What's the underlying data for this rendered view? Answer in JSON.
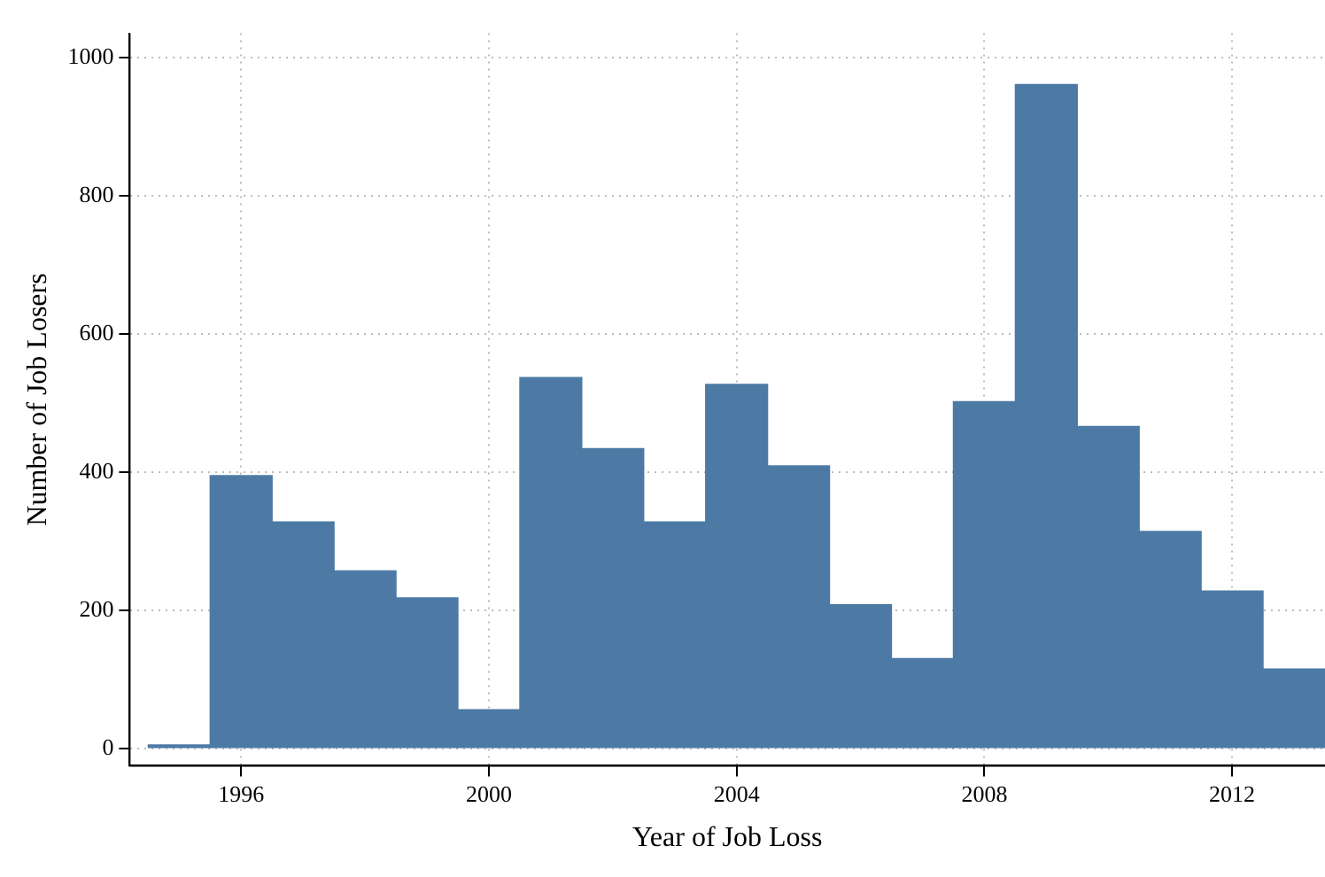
{
  "chart_data": {
    "type": "histogram",
    "xlabel": "Year of Job Loss",
    "ylabel": "Number of Job Losers",
    "bins": [
      1994.5,
      1995.5,
      1996.5,
      1997.5,
      1998.5,
      1999.5,
      2000.5,
      2001.5,
      2002.5,
      2003.5,
      2004.5,
      2005.5,
      2006.5,
      2007.5,
      2008.5,
      2009.5,
      2010.5,
      2011.5,
      2012.5,
      2013.5
    ],
    "values": [
      5,
      395,
      328,
      257,
      218,
      56,
      537,
      434,
      328,
      527,
      409,
      208,
      130,
      502,
      961,
      466,
      314,
      228,
      115
    ],
    "color": "#4c7aa5",
    "xlim": [
      1994.2,
      2013.5
    ],
    "xticks": [
      1996,
      2000,
      2004,
      2008,
      2012
    ],
    "ylim": [
      -25,
      1035
    ],
    "yticks": [
      0,
      200,
      400,
      600,
      800,
      1000
    ],
    "grid": true,
    "legend": false
  }
}
